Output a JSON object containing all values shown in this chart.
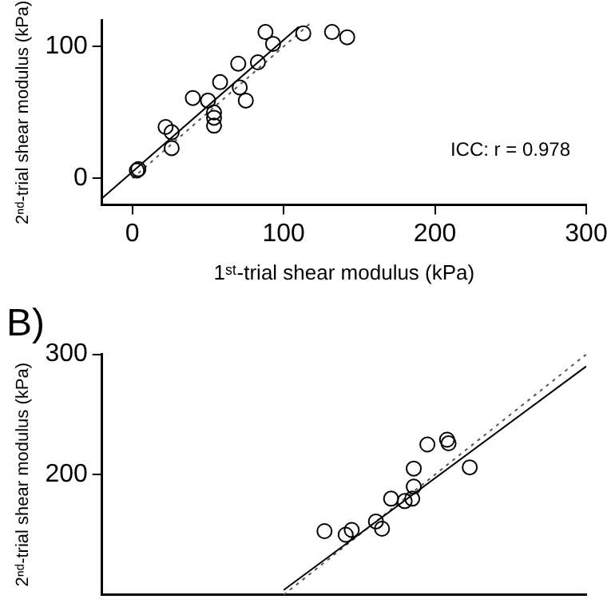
{
  "chart_data": [
    {
      "type": "scatter",
      "xlabel": "1ˢᵗ-trial shear modulus (kPa)",
      "ylabel": "2ⁿᵈ-trial shear modulus (kPa)",
      "xlim": [
        -20,
        300
      ],
      "xticks": [
        0,
        100,
        200,
        300
      ],
      "ylim": [
        -20,
        120
      ],
      "yticks": [
        0,
        100
      ],
      "grid": false,
      "legend": false,
      "annotations": [
        "ICC: r = 0.978"
      ],
      "series": [
        {
          "marker": "circle",
          "color": "#000000",
          "x": [
            4,
            3,
            22,
            26,
            26,
            40,
            50,
            54,
            54,
            54,
            58,
            70,
            71,
            75,
            83,
            93,
            88,
            113,
            132,
            142
          ],
          "values": [
            7,
            6,
            39,
            35,
            23,
            61,
            59,
            50,
            46,
            40,
            73,
            87,
            69,
            59,
            88,
            102,
            111,
            110,
            111,
            107
          ]
        },
        {
          "type": "line",
          "color": "#000000",
          "line_style": "solid",
          "x": [
            -20,
            110
          ],
          "values": [
            -15,
            115
          ]
        },
        {
          "type": "line",
          "color": "#555555",
          "line_style": "dotted",
          "x": [
            0,
            118
          ],
          "values": [
            0,
            118
          ]
        }
      ]
    },
    {
      "type": "scatter",
      "title": "B)",
      "ylabel": "2ⁿᵈ-trial shear modulus (kPa)",
      "xlim": [
        -20,
        300
      ],
      "ylim": [
        100,
        300
      ],
      "yticks": [
        200,
        300
      ],
      "tick_labels": "y",
      "grid": false,
      "legend": false,
      "series": [
        {
          "marker": "circle",
          "color": "#000000",
          "x": [
            127,
            141,
            145,
            161,
            165,
            171,
            180,
            185,
            186,
            186,
            195,
            208,
            209,
            223
          ],
          "values": [
            153,
            150,
            154,
            161,
            155,
            180,
            178,
            180,
            190,
            205,
            225,
            229,
            226,
            206
          ]
        },
        {
          "type": "line",
          "color": "#000000",
          "line_style": "solid",
          "x": [
            100,
            300
          ],
          "values": [
            104,
            290
          ]
        },
        {
          "type": "line",
          "color": "#555555",
          "line_style": "dotted",
          "x": [
            100,
            300
          ],
          "values": [
            100,
            300
          ]
        }
      ]
    }
  ]
}
